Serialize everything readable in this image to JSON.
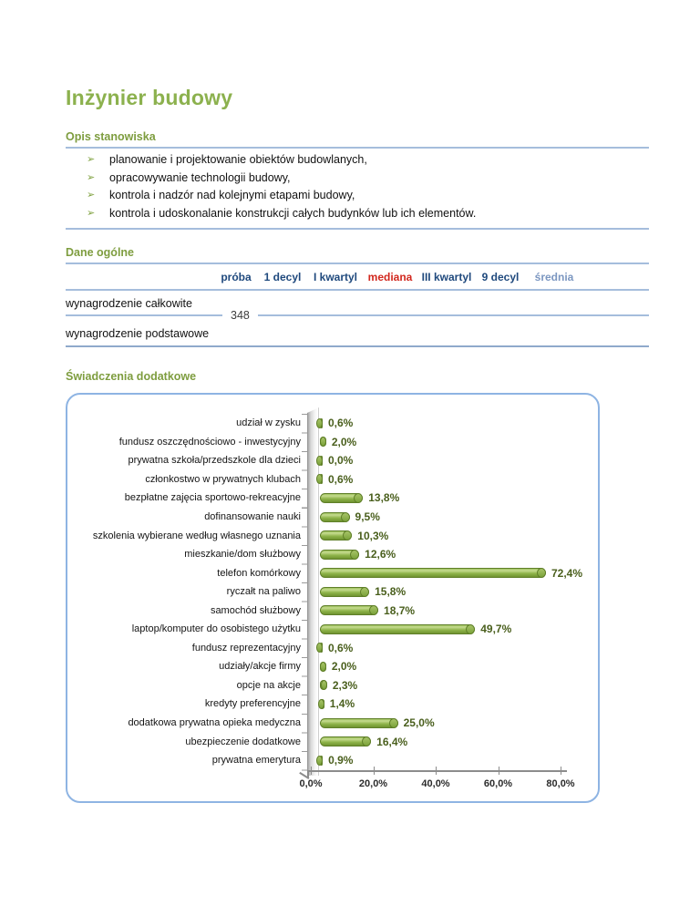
{
  "page": {
    "title": "Inżynier budowy"
  },
  "job_description": {
    "heading": "Opis stanowiska",
    "bullet_icon": "➢",
    "items": [
      "planowanie i projektowanie obiektów budowlanych,",
      "opracowywanie technologii budowy,",
      "kontrola i nadzór nad kolejnymi etapami budowy,",
      "kontrola i udoskonalanie konstrukcji całych budynków lub ich elementów."
    ]
  },
  "general_data": {
    "heading": "Dane ogólne",
    "columns": [
      "próba",
      "1 decyl",
      "I kwartyl",
      "mediana",
      "III kwartyl",
      "9 decyl",
      "średnia"
    ],
    "row_labels": [
      "wynagrodzenie całkowite",
      "wynagrodzenie podstawowe"
    ],
    "sample_size": "348"
  },
  "benefits": {
    "heading": "Świadczenia dodatkowe"
  },
  "chart_data": {
    "type": "bar",
    "orientation": "horizontal",
    "title": "",
    "xlabel": "",
    "ylabel": "",
    "xlim": [
      0,
      82
    ],
    "grid": false,
    "legend": "none",
    "bar_color": "#8FB44A",
    "categories": [
      "udział w zysku",
      "fundusz oszczędnościowo - inwestycyjny",
      "prywatna szkoła/przedszkole dla dzieci",
      "członkostwo w prywatnych klubach",
      "bezpłatne zajęcia sportowo-rekreacyjne",
      "dofinansowanie nauki",
      "szkolenia wybierane według własnego uznania",
      "mieszkanie/dom służbowy",
      "telefon komórkowy",
      "ryczałt na paliwo",
      "samochód służbowy",
      "laptop/komputer do osobistego użytku",
      "fundusz reprezentacyjny",
      "udziały/akcje firmy",
      "opcje na akcje",
      "kredyty preferencyjne",
      "dodatkowa prywatna opieka medyczna",
      "ubezpieczenie dodatkowe",
      "prywatna emerytura"
    ],
    "values": [
      0.6,
      2.0,
      0.0,
      0.6,
      13.8,
      9.5,
      10.3,
      12.6,
      72.4,
      15.8,
      18.7,
      49.7,
      0.6,
      2.0,
      2.3,
      1.4,
      25.0,
      16.4,
      0.9
    ],
    "value_labels": [
      "0,6%",
      "2,0%",
      "0,0%",
      "0,6%",
      "13,8%",
      "9,5%",
      "10,3%",
      "12,6%",
      "72,4%",
      "15,8%",
      "18,7%",
      "49,7%",
      "0,6%",
      "2,0%",
      "2,3%",
      "1,4%",
      "25,0%",
      "16,4%",
      "0,9%"
    ],
    "x_ticks": [
      "0,0%",
      "20,0%",
      "40,0%",
      "60,0%",
      "80,0%"
    ],
    "x_tick_values": [
      0,
      20,
      40,
      60,
      80
    ]
  },
  "colors": {
    "title_green": "#8CB14E",
    "section_green": "#7E9D3F",
    "line_blue": "#A5BDDC",
    "header_navy": "#1F497D",
    "mediana_red": "#D2281E",
    "srednia_blue": "#7C97C1",
    "bar_green": "#8FB44A",
    "value_label_green": "#4A5F1D",
    "chart_border_blue": "#8EB4E3"
  }
}
